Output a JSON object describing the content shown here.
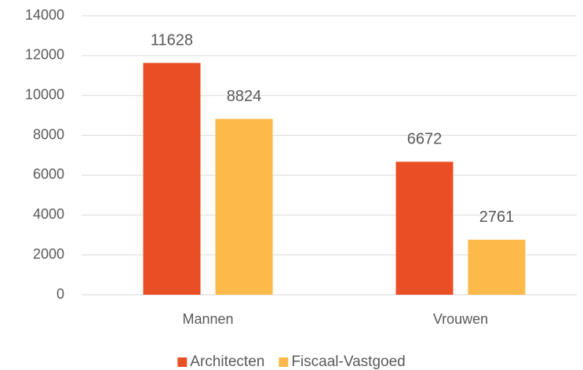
{
  "chart_data": {
    "type": "bar",
    "categories": [
      "Mannen",
      "Vrouwen"
    ],
    "series": [
      {
        "name": "Architecten",
        "color": "#e94e24",
        "values": [
          11628,
          6672
        ]
      },
      {
        "name": "Fiscaal-Vastgoed",
        "color": "#fdb94a",
        "values": [
          8824,
          2761
        ]
      }
    ],
    "ylim": [
      0,
      14000
    ],
    "yticks": [
      0,
      2000,
      4000,
      6000,
      8000,
      10000,
      12000,
      14000
    ],
    "grid": true,
    "legend": "bottom"
  }
}
